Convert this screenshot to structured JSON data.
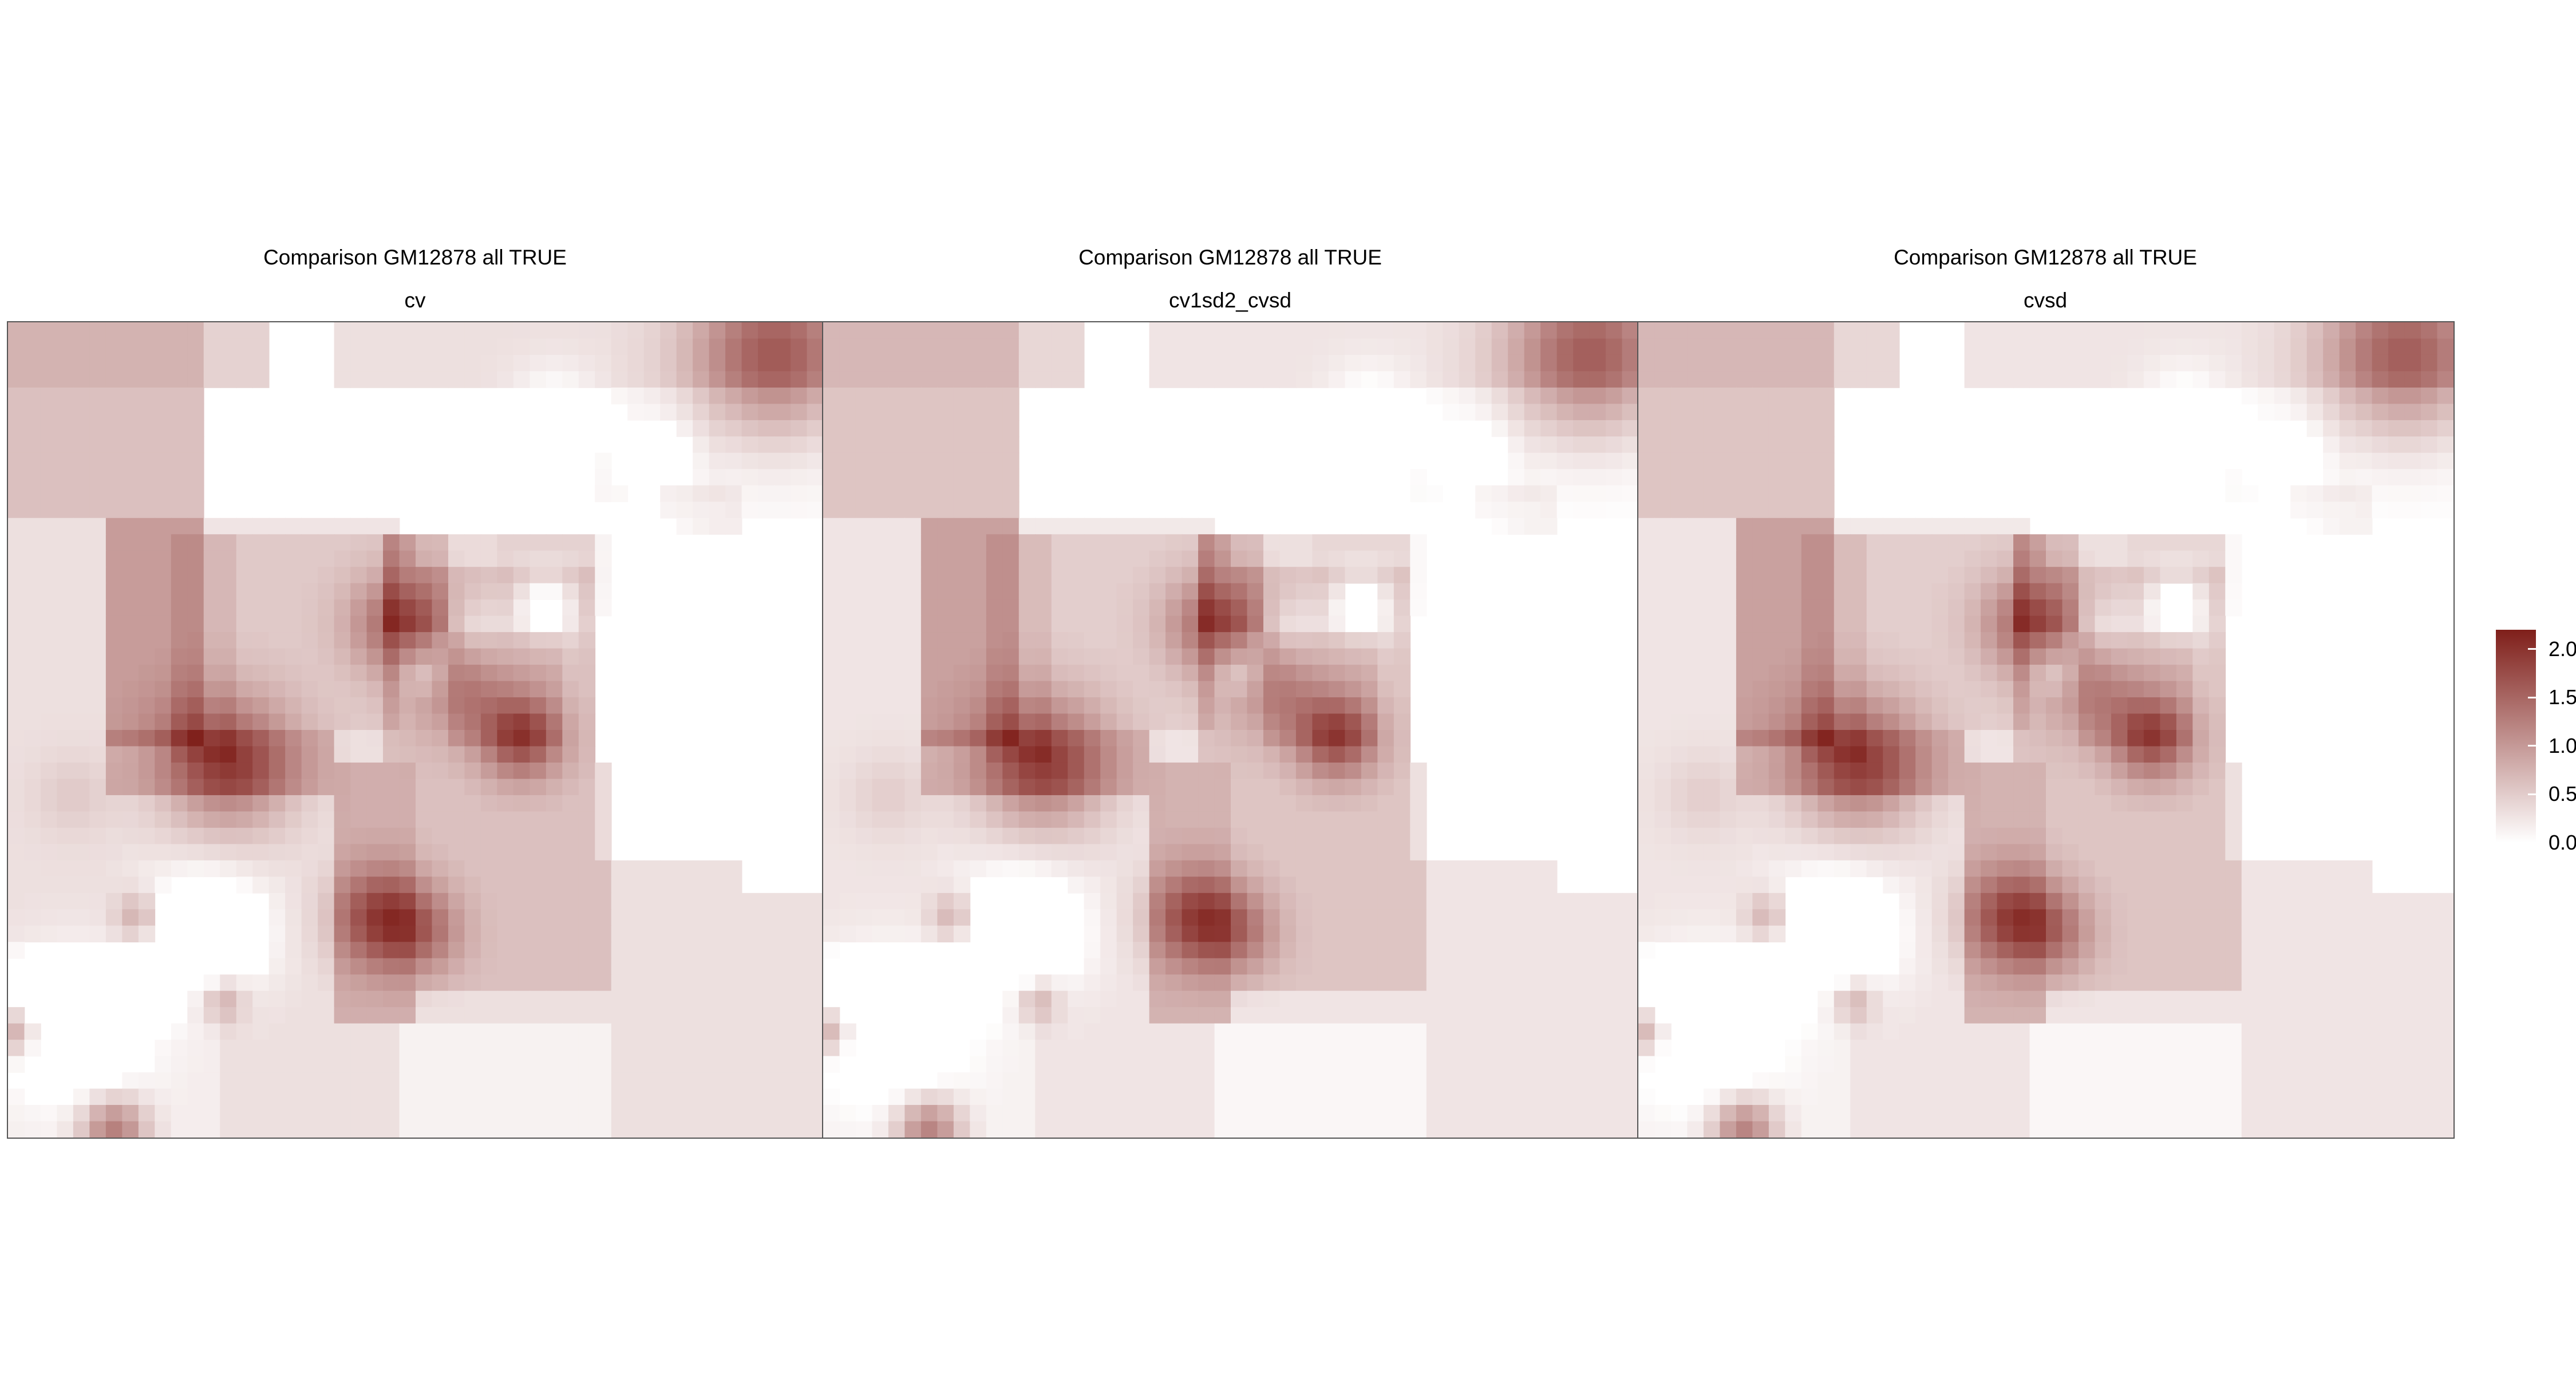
{
  "chart_data": {
    "type": "heatmap",
    "colors": {
      "low": "#ffffff",
      "high": "#7f1f1a",
      "frame": "#555555"
    },
    "panels": [
      {
        "title": "Comparison GM12878 all TRUE",
        "subtitle": "cv"
      },
      {
        "title": "Comparison GM12878 all TRUE",
        "subtitle": "cv1sd2_cvsd"
      },
      {
        "title": "Comparison GM12878 all TRUE",
        "subtitle": "cvsd"
      }
    ],
    "legend": {
      "range": [
        0.0,
        2.2
      ],
      "ticks": [
        {
          "value": 2.0,
          "label": "2.0"
        },
        {
          "value": 1.5,
          "label": "1.5"
        },
        {
          "value": 1.0,
          "label": "1.0"
        },
        {
          "value": 0.5,
          "label": "0.5"
        },
        {
          "value": 0.0,
          "label": "0.0"
        }
      ]
    },
    "grid": false,
    "axes": false
  }
}
